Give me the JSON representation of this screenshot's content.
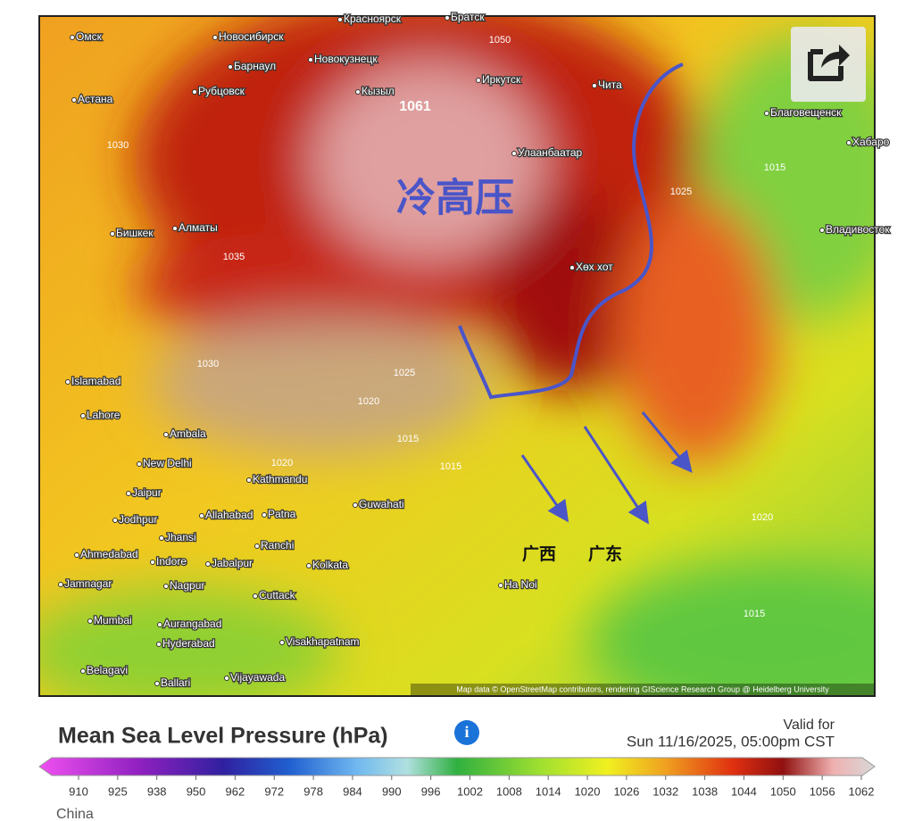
{
  "map": {
    "place_labels": [
      "Омск",
      "Новосибирск",
      "Красноярск",
      "Братск",
      "Барнаул",
      "Новокузнецк",
      "Рубцовск",
      "Астана",
      "Кызыл",
      "Иркутск",
      "Чита",
      "Благовещенск",
      "Хабаро",
      "Улаанбаатар",
      "Бишкек",
      "Алматы",
      "Владивосток",
      "Хөх хот",
      "Islamabad",
      "Lahore",
      "Ambala",
      "New Delhi",
      "Kathmandu",
      "Jaipur",
      "Jodhpur",
      "Allahabad",
      "Patna",
      "Guwahati",
      "Jhansi",
      "Ranchi",
      "Ahmedabad",
      "Indore",
      "Jabalpur",
      "Kolkata",
      "Jamnagar",
      "Nagpur",
      "Cuttack",
      "Mumbai",
      "Aurangabad",
      "Hyderabad",
      "Visakhapatnam",
      "Belagavi",
      "Ballari",
      "Vijayawada",
      "Ha Noi"
    ],
    "pressure_labels": [
      "1050",
      "1061",
      "1030",
      "1025",
      "1015",
      "1035",
      "1030",
      "1025",
      "1020",
      "1015",
      "1020",
      "1015",
      "1015",
      "1020"
    ],
    "annotations": {
      "cold_high": "冷高压",
      "guangxi": "广西",
      "guangdong": "广东"
    },
    "attribution": "Map data © OpenStreetMap contributors, rendering GIScience Research Group @ Heidelberg University"
  },
  "legend": {
    "title": "Mean Sea Level Pressure (hPa)",
    "valid_label": "Valid for",
    "valid_time": "Sun 11/16/2025, 05:00pm CST",
    "ticks": [
      "910",
      "925",
      "938",
      "950",
      "962",
      "972",
      "978",
      "984",
      "990",
      "996",
      "1002",
      "1008",
      "1014",
      "1020",
      "1026",
      "1032",
      "1038",
      "1044",
      "1050",
      "1056",
      "1062"
    ]
  },
  "region": "China"
}
